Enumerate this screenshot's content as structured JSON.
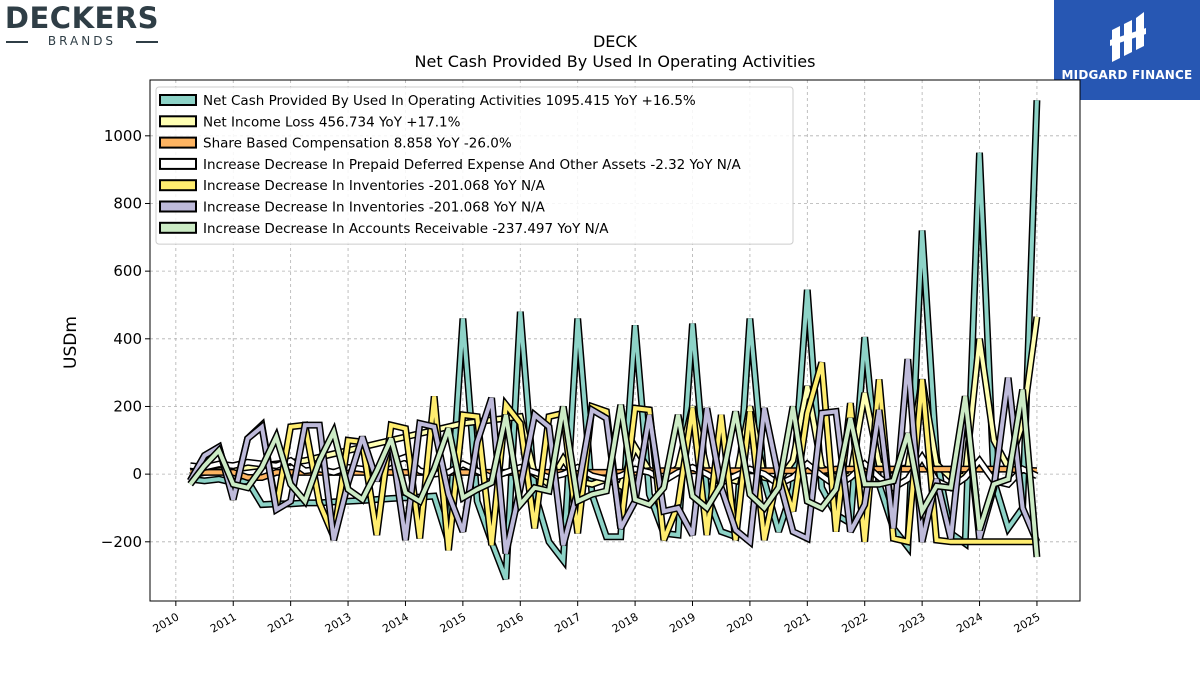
{
  "branding": {
    "left_name": "DECKERS",
    "left_sub": "BRANDS",
    "right_name": "MIDGARD FINANCE",
    "right_bg": "#2757b3"
  },
  "chart_data": {
    "type": "line",
    "title": "DECK",
    "subtitle": "Net Cash Provided By Used In Operating Activities",
    "ylabel": "USDm",
    "xlabel": "",
    "xlim": [
      2009.55,
      2025.75
    ],
    "ylim": [
      -375,
      1165
    ],
    "x_ticks": [
      "2010",
      "2011",
      "2012",
      "2013",
      "2014",
      "2015",
      "2016",
      "2017",
      "2018",
      "2019",
      "2020",
      "2021",
      "2022",
      "2023",
      "2024",
      "2025"
    ],
    "y_ticks": [
      "−200",
      "0",
      "200",
      "400",
      "600",
      "800",
      "1000"
    ],
    "y_tick_values": [
      -200,
      0,
      200,
      400,
      600,
      800,
      1000
    ],
    "grid": true,
    "legend_position": "top-left",
    "series": [
      {
        "name": "Net Cash Provided By Used In Operating Activities  1095.415 YoY +16.5%",
        "color": "#8dd3c7",
        "x": [
          2010.25,
          2010.5,
          2010.75,
          2011.0,
          2011.25,
          2011.5,
          2011.75,
          2012.0,
          2012.25,
          2012.5,
          2012.75,
          2013.0,
          2013.25,
          2013.5,
          2013.75,
          2014.0,
          2014.25,
          2014.5,
          2014.75,
          2015.0,
          2015.25,
          2015.5,
          2015.75,
          2016.0,
          2016.25,
          2016.5,
          2016.75,
          2017.0,
          2017.25,
          2017.5,
          2017.75,
          2018.0,
          2018.25,
          2018.5,
          2018.75,
          2019.0,
          2019.25,
          2019.5,
          2019.75,
          2020.0,
          2020.25,
          2020.5,
          2020.75,
          2021.0,
          2021.25,
          2021.5,
          2021.75,
          2022.0,
          2022.25,
          2022.5,
          2022.75,
          2023.0,
          2023.25,
          2023.5,
          2023.75,
          2024.0,
          2024.25,
          2024.5,
          2024.75,
          2025.0
        ],
        "y": [
          -15,
          -20,
          -15,
          -25,
          -20,
          -90,
          -88,
          -88,
          -85,
          -85,
          -82,
          -80,
          -78,
          -75,
          -72,
          -70,
          -68,
          -65,
          -200,
          460,
          -80,
          -200,
          -310,
          480,
          -55,
          -200,
          -255,
          460,
          -60,
          -185,
          -185,
          440,
          -60,
          -175,
          -180,
          445,
          -60,
          -170,
          -185,
          460,
          -20,
          -170,
          -40,
          545,
          -40,
          -120,
          -145,
          405,
          -30,
          -160,
          -215,
          720,
          50,
          -175,
          -205,
          950,
          -20,
          -160,
          -100,
          1105
        ]
      },
      {
        "name": "Net Income Loss  456.734 YoY +17.1%",
        "color": "#ffffb3",
        "x": [
          2010.25,
          2010.5,
          2010.75,
          2011.0,
          2011.25,
          2011.5,
          2011.75,
          2012.0,
          2012.25,
          2012.5,
          2012.75,
          2013.0,
          2013.25,
          2013.5,
          2013.75,
          2014.0,
          2014.25,
          2014.5,
          2014.75,
          2015.0,
          2015.25,
          2015.5,
          2015.75,
          2016.0,
          2016.25,
          2016.5,
          2016.75,
          2017.0,
          2017.25,
          2017.5,
          2017.75,
          2018.0,
          2018.25,
          2018.5,
          2018.75,
          2019.0,
          2019.25,
          2019.5,
          2019.75,
          2020.0,
          2020.25,
          2020.5,
          2020.75,
          2021.0,
          2021.25,
          2021.5,
          2021.75,
          2022.0,
          2022.25,
          2022.5,
          2022.75,
          2023.0,
          2023.25,
          2023.5,
          2023.75,
          2024.0,
          2024.25,
          2024.5,
          2024.75,
          2025.0
        ],
        "y": [
          -5,
          5,
          10,
          15,
          20,
          25,
          30,
          35,
          40,
          50,
          60,
          70,
          80,
          90,
          100,
          110,
          120,
          130,
          140,
          150,
          155,
          160,
          165,
          170,
          0,
          -30,
          45,
          -20,
          -30,
          -15,
          -35,
          80,
          10,
          -20,
          20,
          200,
          15,
          -10,
          -20,
          200,
          -10,
          -20,
          40,
          260,
          20,
          -10,
          -5,
          240,
          30,
          10,
          20,
          280,
          30,
          -10,
          -5,
          400,
          100,
          20,
          150,
          465
        ]
      },
      {
        "name": "Share Based Compensation  8.858 YoY -26.0%",
        "color": "#fdb462",
        "x": [
          2010.25,
          2010.5,
          2010.75,
          2011.0,
          2011.25,
          2011.5,
          2011.75,
          2012.0,
          2012.25,
          2012.5,
          2012.75,
          2013.0,
          2013.25,
          2013.5,
          2013.75,
          2014.0,
          2014.25,
          2014.5,
          2014.75,
          2015.0,
          2015.25,
          2015.5,
          2015.75,
          2016.0,
          2016.25,
          2016.5,
          2016.75,
          2017.0,
          2017.25,
          2017.5,
          2017.75,
          2018.0,
          2018.25,
          2018.5,
          2018.75,
          2019.0,
          2019.25,
          2019.5,
          2019.75,
          2020.0,
          2020.25,
          2020.5,
          2020.75,
          2021.0,
          2021.25,
          2021.5,
          2021.75,
          2022.0,
          2022.25,
          2022.5,
          2022.75,
          2023.0,
          2023.25,
          2023.5,
          2023.75,
          2024.0,
          2024.25,
          2024.5,
          2024.75,
          2025.0
        ],
        "y": [
          5,
          5,
          5,
          5,
          -10,
          -10,
          5,
          5,
          5,
          5,
          5,
          5,
          5,
          5,
          5,
          5,
          5,
          5,
          5,
          5,
          5,
          5,
          5,
          5,
          5,
          5,
          5,
          5,
          5,
          5,
          5,
          5,
          10,
          10,
          10,
          10,
          10,
          10,
          10,
          10,
          10,
          10,
          10,
          10,
          10,
          15,
          15,
          15,
          15,
          15,
          15,
          15,
          15,
          15,
          15,
          15,
          15,
          15,
          12,
          10
        ]
      },
      {
        "name": "Increase Decrease In Prepaid Deferred Expense And Other Assets  -2.32 YoY N/A",
        "color": "#ffffff",
        "x": [
          2010.25,
          2010.5,
          2010.75,
          2011.0,
          2011.25,
          2011.5,
          2011.75,
          2012.0,
          2012.25,
          2012.5,
          2012.75,
          2013.0,
          2013.25,
          2013.5,
          2013.75,
          2014.0,
          2014.25,
          2014.5,
          2014.75,
          2015.0,
          2015.25,
          2015.5,
          2015.75,
          2016.0,
          2016.25,
          2016.5,
          2016.75,
          2017.0,
          2017.25,
          2017.5,
          2017.75,
          2018.0,
          2018.25,
          2018.5,
          2018.75,
          2019.0,
          2019.25,
          2019.5,
          2019.75,
          2020.0,
          2020.25,
          2020.5,
          2020.75,
          2021.0,
          2021.25,
          2021.5,
          2021.75,
          2022.0,
          2022.25,
          2022.5,
          2022.75,
          2023.0,
          2023.25,
          2023.5,
          2023.75,
          2024.0,
          2024.25,
          2024.5,
          2024.75,
          2025.0
        ],
        "y": [
          25,
          20,
          30,
          25,
          35,
          30,
          25,
          40,
          10,
          15,
          5,
          20,
          15,
          10,
          35,
          50,
          10,
          0,
          5,
          30,
          10,
          -10,
          5,
          20,
          5,
          -10,
          0,
          20,
          -5,
          -15,
          -5,
          15,
          5,
          -20,
          5,
          20,
          0,
          -25,
          -5,
          15,
          0,
          -30,
          -10,
          30,
          -5,
          -35,
          -10,
          30,
          -10,
          -40,
          -15,
          50,
          -20,
          -40,
          -10,
          40,
          -20,
          -30,
          15,
          -5
        ]
      },
      {
        "name": "Increase Decrease In Inventories  -201.068 YoY N/A",
        "color": "#ffed6f",
        "x": [
          2010.25,
          2010.5,
          2010.75,
          2011.0,
          2011.25,
          2011.5,
          2011.75,
          2012.0,
          2012.25,
          2012.5,
          2012.75,
          2013.0,
          2013.25,
          2013.5,
          2013.75,
          2014.0,
          2014.25,
          2014.5,
          2014.75,
          2015.0,
          2015.25,
          2015.5,
          2015.75,
          2016.0,
          2016.25,
          2016.5,
          2016.75,
          2017.0,
          2017.25,
          2017.5,
          2017.75,
          2018.0,
          2018.25,
          2018.5,
          2018.75,
          2019.0,
          2019.25,
          2019.5,
          2019.75,
          2020.0,
          2020.25,
          2020.5,
          2020.75,
          2021.0,
          2021.25,
          2021.5,
          2021.75,
          2022.0,
          2022.25,
          2022.5,
          2022.75,
          2023.0,
          2023.25,
          2023.5,
          2023.75,
          2024.0,
          2024.25,
          2024.5,
          2024.75,
          2025.0
        ],
        "y": [
          -20,
          55,
          80,
          -70,
          105,
          145,
          -100,
          140,
          145,
          -85,
          -185,
          100,
          95,
          -180,
          145,
          135,
          -190,
          230,
          -225,
          175,
          170,
          -210,
          205,
          150,
          -160,
          170,
          180,
          -175,
          200,
          185,
          -160,
          195,
          190,
          -195,
          -90,
          195,
          -180,
          175,
          -195,
          185,
          -195,
          10,
          -110,
          180,
          330,
          -170,
          210,
          -200,
          280,
          -190,
          -200,
          280,
          -195,
          -200,
          -200,
          -200,
          -200,
          -200,
          -200,
          -200
        ]
      },
      {
        "name": "Increase Decrease In Inventories  -201.068 YoY N/A",
        "color": "#bebada",
        "x": [
          2010.25,
          2010.5,
          2010.75,
          2011.0,
          2011.25,
          2011.5,
          2011.75,
          2012.0,
          2012.25,
          2012.5,
          2012.75,
          2013.0,
          2013.25,
          2013.5,
          2013.75,
          2014.0,
          2014.25,
          2014.5,
          2014.75,
          2015.0,
          2015.25,
          2015.5,
          2015.75,
          2016.0,
          2016.25,
          2016.5,
          2016.75,
          2017.0,
          2017.25,
          2017.5,
          2017.75,
          2018.0,
          2018.25,
          2018.5,
          2018.75,
          2019.0,
          2019.25,
          2019.5,
          2019.75,
          2020.0,
          2020.25,
          2020.5,
          2020.75,
          2021.0,
          2021.25,
          2021.5,
          2021.75,
          2022.0,
          2022.25,
          2022.5,
          2022.75,
          2023.0,
          2023.25,
          2023.5,
          2023.75,
          2024.0,
          2024.25,
          2024.5,
          2024.75,
          2025.0
        ],
        "y": [
          -20,
          55,
          80,
          -75,
          105,
          140,
          -105,
          -80,
          145,
          145,
          -195,
          -25,
          110,
          -20,
          100,
          -195,
          150,
          140,
          -60,
          -170,
          95,
          225,
          -235,
          -40,
          175,
          140,
          -210,
          -50,
          190,
          165,
          -160,
          -80,
          175,
          -110,
          -100,
          -180,
          195,
          -40,
          -165,
          -200,
          195,
          -10,
          -170,
          -190,
          180,
          185,
          -170,
          -90,
          190,
          -160,
          340,
          -200,
          -15,
          -190,
          210,
          -190,
          -40,
          285,
          -100,
          -200
        ]
      },
      {
        "name": "Increase Decrease In Accounts Receivable  -237.497 YoY N/A",
        "color": "#ccebc5",
        "x": [
          2010.25,
          2010.5,
          2010.75,
          2011.0,
          2011.25,
          2011.5,
          2011.75,
          2012.0,
          2012.25,
          2012.5,
          2012.75,
          2013.0,
          2013.25,
          2013.5,
          2013.75,
          2014.0,
          2014.25,
          2014.5,
          2014.75,
          2015.0,
          2015.25,
          2015.5,
          2015.75,
          2016.0,
          2016.25,
          2016.5,
          2016.75,
          2017.0,
          2017.25,
          2017.5,
          2017.75,
          2018.0,
          2018.25,
          2018.5,
          2018.75,
          2019.0,
          2019.25,
          2019.5,
          2019.75,
          2020.0,
          2020.25,
          2020.5,
          2020.75,
          2021.0,
          2021.25,
          2021.5,
          2021.75,
          2022.0,
          2022.25,
          2022.5,
          2022.75,
          2023.0,
          2023.25,
          2023.5,
          2023.75,
          2024.0,
          2024.25,
          2024.5,
          2024.75,
          2025.0
        ],
        "y": [
          -30,
          25,
          70,
          -30,
          -40,
          20,
          110,
          -30,
          -80,
          40,
          125,
          -45,
          -75,
          10,
          105,
          -55,
          -80,
          15,
          135,
          -70,
          -45,
          -25,
          175,
          -90,
          -40,
          -50,
          200,
          -80,
          -60,
          -50,
          205,
          -75,
          -90,
          -40,
          175,
          -65,
          -100,
          -30,
          185,
          -60,
          -100,
          -40,
          200,
          -80,
          -100,
          -45,
          165,
          -30,
          -30,
          -20,
          120,
          -110,
          -35,
          -40,
          230,
          -165,
          -30,
          -15,
          250,
          -245
        ]
      }
    ]
  }
}
